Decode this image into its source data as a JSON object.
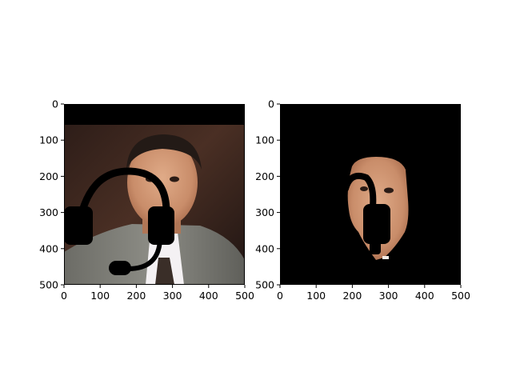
{
  "figure": {
    "background": "#ffffff",
    "frame_color": "#000000"
  },
  "chart_data": [
    {
      "type": "image",
      "name": "original-with-headset-overlay",
      "xlim": [
        0,
        500
      ],
      "ylim": [
        500,
        0
      ],
      "xticks": [
        0,
        100,
        200,
        300,
        400,
        500
      ],
      "yticks": [
        0,
        100,
        200,
        300,
        400,
        500
      ],
      "xtick_labels": [
        "0",
        "100",
        "200",
        "300",
        "400",
        "500"
      ],
      "ytick_labels": [
        "0",
        "100",
        "200",
        "300",
        "400",
        "500"
      ],
      "content": "photo of a man in a grey suit and tie with a black headset overlay drawn over the face",
      "colors": {
        "background_band": "#000000",
        "overlay": "#000000"
      }
    },
    {
      "type": "image",
      "name": "segmented-face-mask",
      "xlim": [
        0,
        500
      ],
      "ylim": [
        500,
        0
      ],
      "xticks": [
        0,
        100,
        200,
        300,
        400,
        500
      ],
      "yticks": [
        0,
        100,
        200,
        300,
        400,
        500
      ],
      "xtick_labels": [
        "0",
        "100",
        "200",
        "300",
        "400",
        "500"
      ],
      "ytick_labels": [
        "0",
        "100",
        "200",
        "300",
        "400",
        "500"
      ],
      "content": "black background with only the segmented face region visible, partly occluded by the headset",
      "colors": {
        "background": "#000000",
        "skin": "#d9a27e"
      }
    }
  ]
}
